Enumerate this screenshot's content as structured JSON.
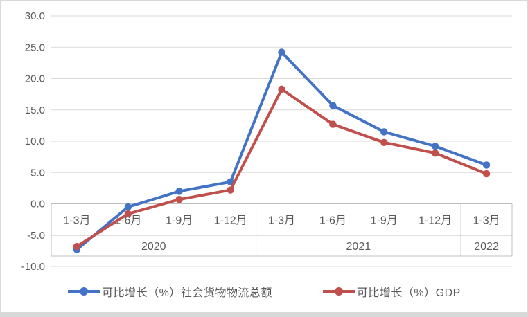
{
  "chart_data": {
    "type": "line",
    "categories": [
      "1-3月",
      "1-6月",
      "1-9月",
      "1-12月",
      "1-3月",
      "1-6月",
      "1-9月",
      "1-12月",
      "1-3月"
    ],
    "year_groups": [
      {
        "label": "2020",
        "span": 4
      },
      {
        "label": "2021",
        "span": 4
      },
      {
        "label": "2022",
        "span": 1
      }
    ],
    "series": [
      {
        "name": "可比增长（%）社会货物物流总额",
        "color": "#4472C4",
        "values": [
          -7.3,
          -0.5,
          2.0,
          3.5,
          24.2,
          15.7,
          11.5,
          9.2,
          6.2
        ]
      },
      {
        "name": "可比增长（%）GDP",
        "color": "#C0504D",
        "values": [
          -6.8,
          -1.6,
          0.7,
          2.2,
          18.3,
          12.7,
          9.8,
          8.1,
          4.8
        ]
      }
    ],
    "title": "",
    "xlabel": "",
    "ylabel": "",
    "ylim": [
      -10,
      30
    ],
    "ytick_step": 5,
    "ytick_labels": [
      "30.0",
      "25.0",
      "20.0",
      "15.0",
      "10.0",
      "5.0",
      "0.0",
      "-5.0",
      "-10.0"
    ],
    "grid": true,
    "legend_position": "bottom"
  },
  "style": {
    "grid_color": "#d9d9d9",
    "table_border_color": "#bfbfbf",
    "text_color": "#595959",
    "background": "#ffffff"
  }
}
